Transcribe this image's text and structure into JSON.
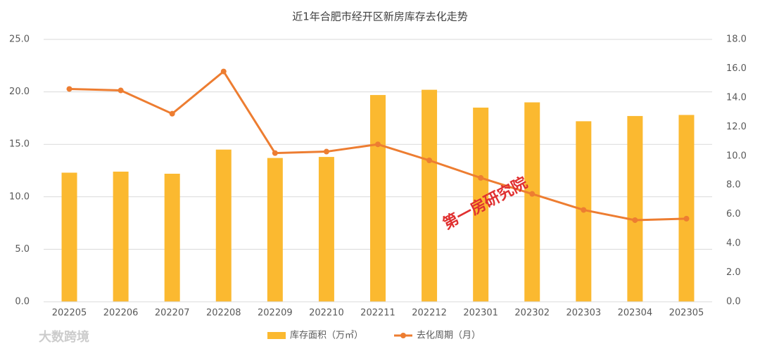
{
  "chart_data": {
    "type": "bar-line",
    "title": "近1年合肥市经开区新房库存去化走势",
    "categories": [
      "202205",
      "202206",
      "202207",
      "202208",
      "202209",
      "202210",
      "202211",
      "202212",
      "202301",
      "202302",
      "202303",
      "202304",
      "202305"
    ],
    "series": [
      {
        "name": "库存面积（万㎡）",
        "type": "bar",
        "color": "#fbb930",
        "axis": "y",
        "values": [
          12.3,
          12.4,
          12.2,
          14.5,
          13.7,
          13.8,
          19.7,
          20.2,
          18.5,
          19.0,
          17.2,
          17.7,
          17.8
        ]
      },
      {
        "name": "去化周期（月）",
        "type": "line",
        "color": "#ed7d31",
        "axis": "y2",
        "values": [
          14.6,
          14.5,
          12.9,
          15.8,
          10.2,
          10.3,
          10.8,
          9.7,
          8.5,
          7.4,
          6.3,
          5.6,
          5.7
        ]
      }
    ],
    "ylim": [
      0,
      25
    ],
    "yticks": [
      {
        "value": 0,
        "label": "0.0"
      },
      {
        "value": 5,
        "label": "5.0"
      },
      {
        "value": 10,
        "label": "10.0"
      },
      {
        "value": 15,
        "label": "15.0"
      },
      {
        "value": 20,
        "label": "20.0"
      },
      {
        "value": 25,
        "label": "25.0"
      }
    ],
    "y2lim": [
      0,
      18
    ],
    "y2ticks": [
      {
        "value": 0,
        "label": "0.0"
      },
      {
        "value": 2,
        "label": "2.0"
      },
      {
        "value": 4,
        "label": "4.0"
      },
      {
        "value": 6,
        "label": "6.0"
      },
      {
        "value": 8,
        "label": "8.0"
      },
      {
        "value": 10,
        "label": "10.0"
      },
      {
        "value": 12,
        "label": "12.0"
      },
      {
        "value": 14,
        "label": "14.0"
      },
      {
        "value": 16,
        "label": "16.0"
      },
      {
        "value": 18,
        "label": "18.0"
      }
    ],
    "grid": true,
    "legend": "bottom",
    "annotations": [
      "第一房研究院",
      "大数跨境"
    ]
  }
}
